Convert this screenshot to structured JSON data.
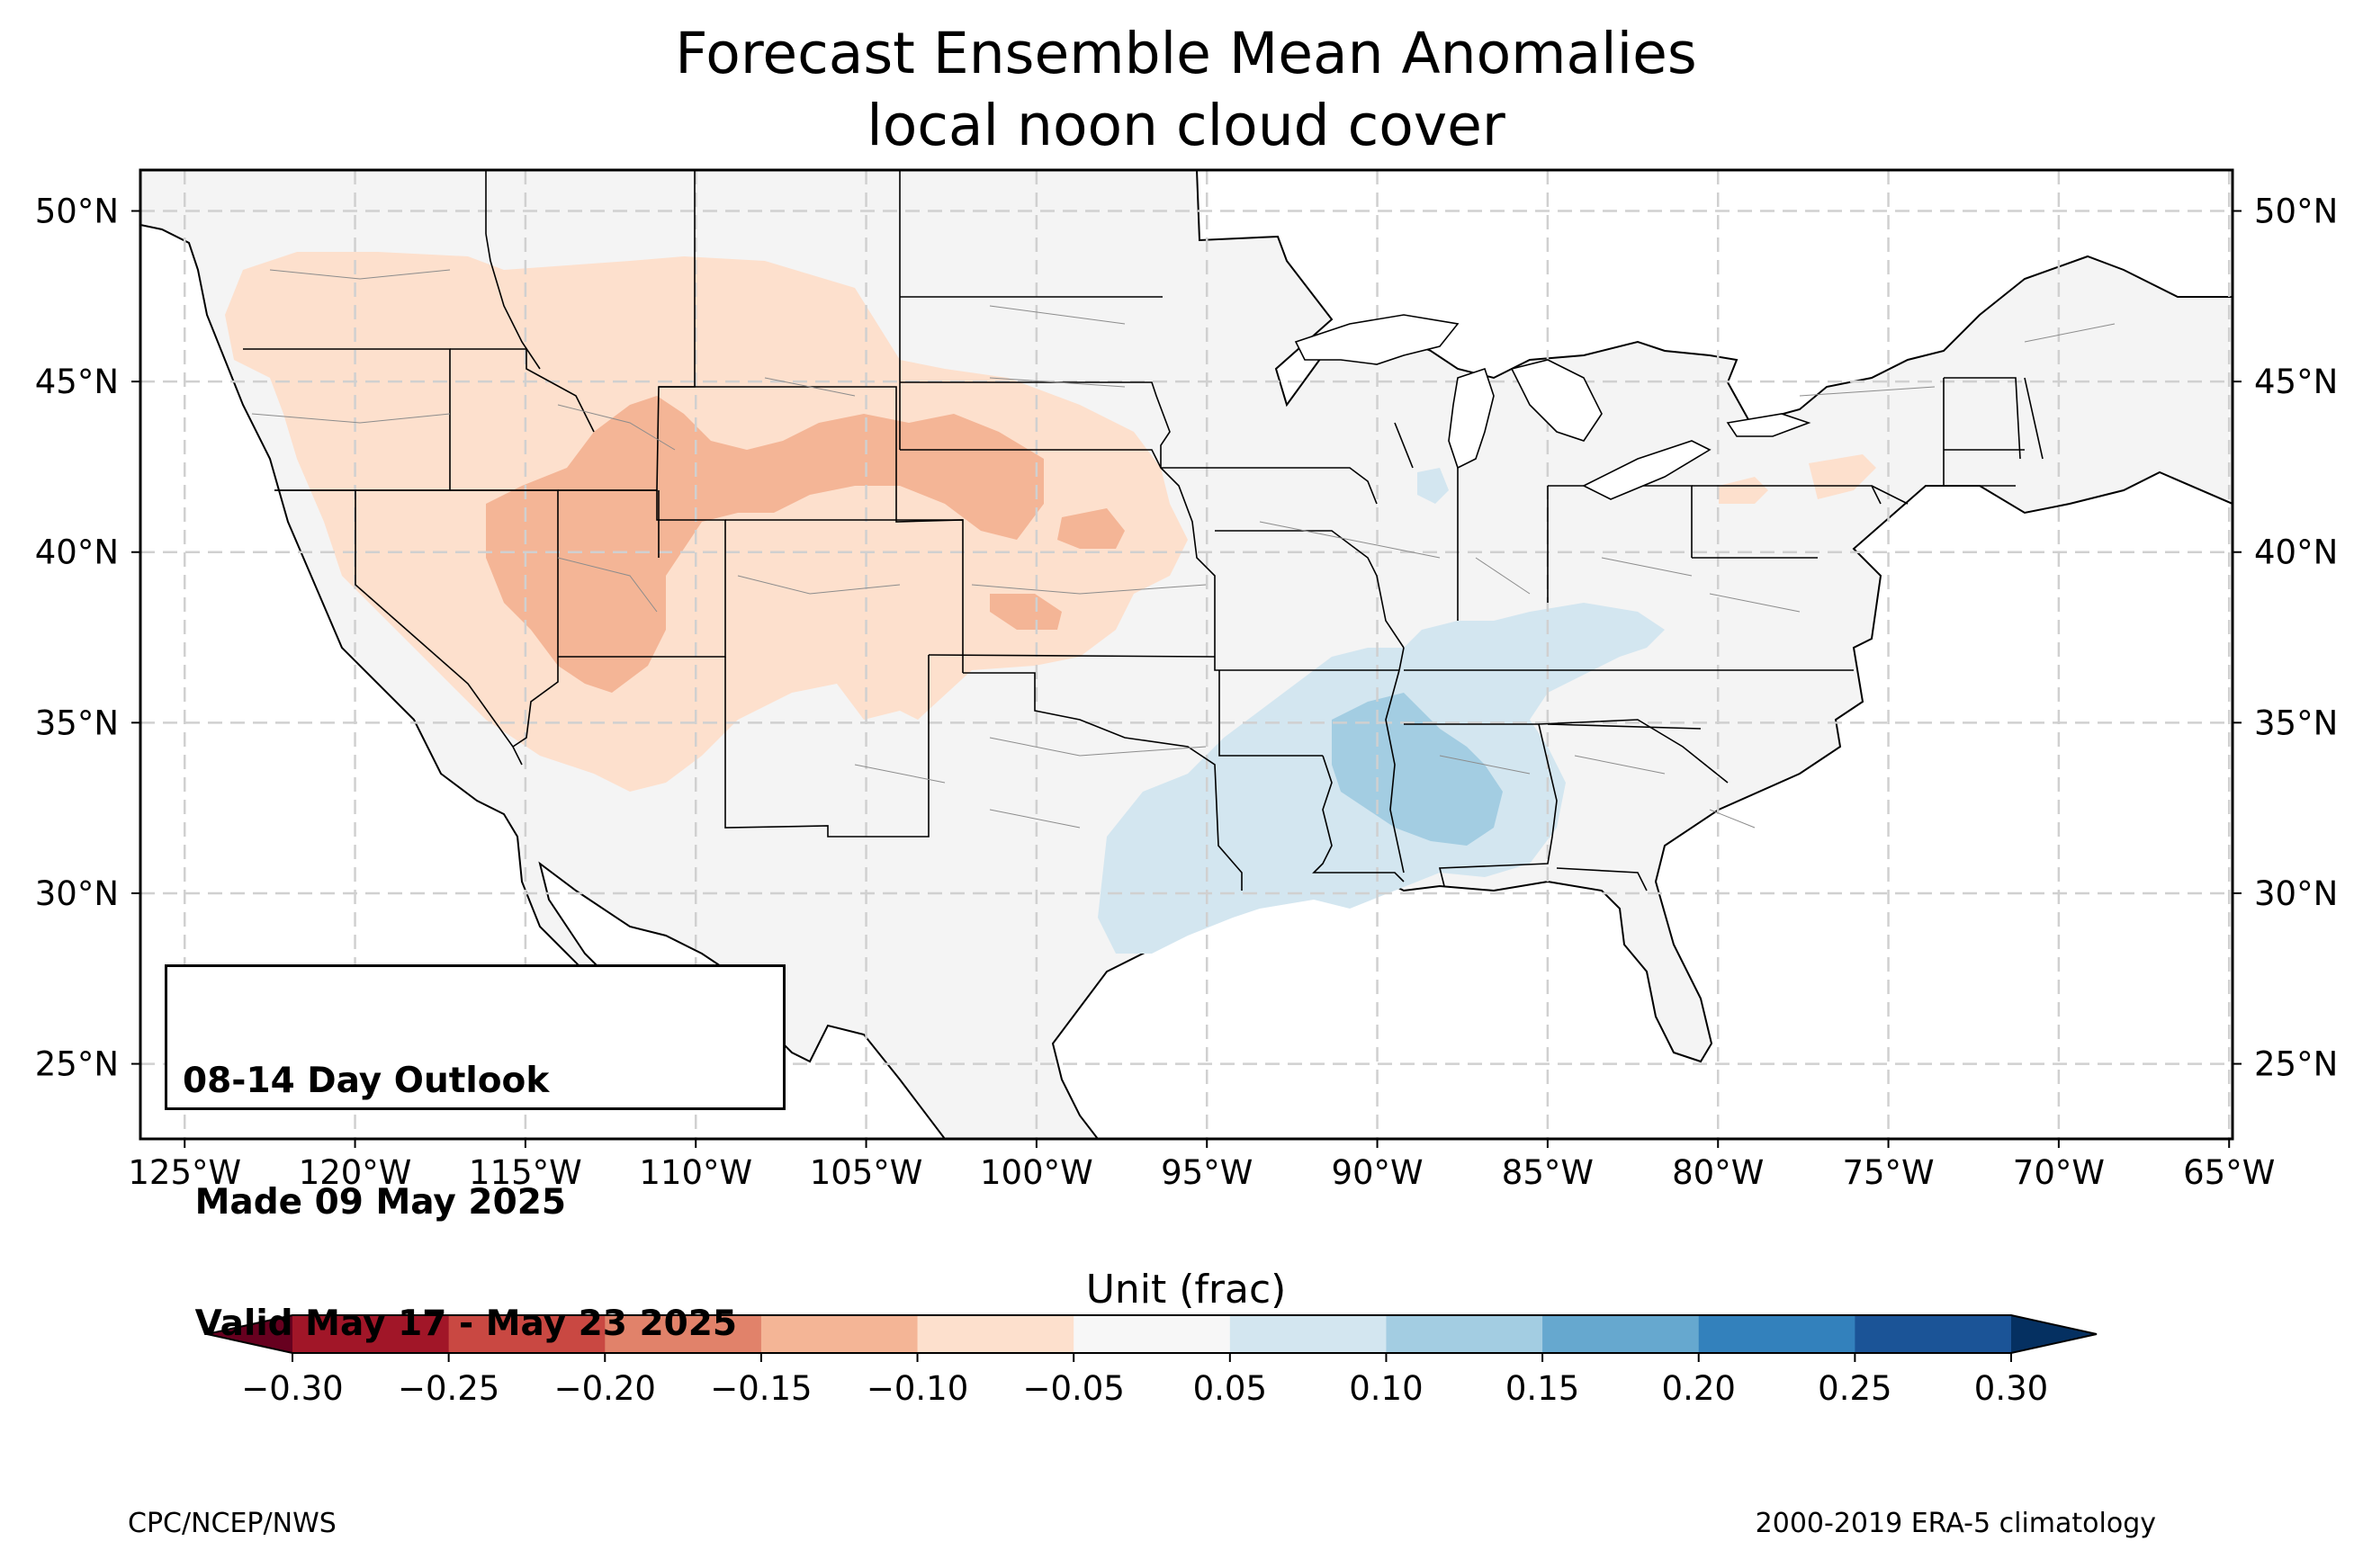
{
  "title": {
    "line1": "Forecast Ensemble Mean Anomalies",
    "line2": "local noon cloud cover"
  },
  "map": {
    "lon_range": [
      -126.3,
      -64.9
    ],
    "lat_range": [
      22.8,
      51.2
    ],
    "lon_ticks": [
      {
        "value": -125,
        "label": "125°W"
      },
      {
        "value": -120,
        "label": "120°W"
      },
      {
        "value": -115,
        "label": "115°W"
      },
      {
        "value": -110,
        "label": "110°W"
      },
      {
        "value": -105,
        "label": "105°W"
      },
      {
        "value": -100,
        "label": "100°W"
      },
      {
        "value": -95,
        "label": "95°W"
      },
      {
        "value": -90,
        "label": "90°W"
      },
      {
        "value": -85,
        "label": "85°W"
      },
      {
        "value": -80,
        "label": "80°W"
      },
      {
        "value": -75,
        "label": "75°W"
      },
      {
        "value": -70,
        "label": "70°W"
      },
      {
        "value": -65,
        "label": "65°W"
      }
    ],
    "lat_ticks": [
      {
        "value": 50,
        "label": "50°N"
      },
      {
        "value": 45,
        "label": "45°N"
      },
      {
        "value": 40,
        "label": "40°N"
      },
      {
        "value": 35,
        "label": "35°N"
      },
      {
        "value": 30,
        "label": "30°N"
      },
      {
        "value": 25,
        "label": "25°N"
      }
    ],
    "gridlines": true,
    "anomaly_regions": [
      {
        "value": -0.075,
        "level": "-0.10 to -0.05",
        "description": "Pacific Northwest, Great Basin, Rockies, central Plains"
      },
      {
        "value": -0.125,
        "level": "-0.15 to -0.10",
        "description": "Utah, Colorado, Wyoming, Nebraska"
      },
      {
        "value": 0.075,
        "level": "0.05 to 0.10",
        "description": "Texas, Lower Mississippi Valley, Tennessee Valley"
      },
      {
        "value": 0.125,
        "level": "0.10 to 0.15",
        "description": "Mississippi and Alabama"
      }
    ]
  },
  "outlook_box": {
    "line1": "08-14 Day Outlook",
    "line2": " Made 09 May 2025",
    "line3": " Valid May 17 - May 23 2025"
  },
  "colorbar": {
    "label": "Unit (frac)",
    "levels": [
      -0.3,
      -0.25,
      -0.2,
      -0.15,
      -0.1,
      -0.05,
      0.05,
      0.1,
      0.15,
      0.2,
      0.25,
      0.3
    ],
    "tick_labels": [
      "−0.30",
      "−0.25",
      "−0.20",
      "−0.15",
      "−0.10",
      "−0.05",
      "0.05",
      "0.10",
      "0.15",
      "0.20",
      "0.25",
      "0.30"
    ],
    "colors": [
      "#a11628",
      "#c94842",
      "#e1826a",
      "#f4b596",
      "#fde0cd",
      "#f7f7f7",
      "#d3e6f0",
      "#a3cde2",
      "#66a8cf",
      "#3381bc",
      "#1b5497"
    ],
    "under_color": "#67001f",
    "over_color": "#053061"
  },
  "footer": {
    "left": "CPC/NCEP/NWS",
    "right": "2000-2019 ERA-5 climatology"
  },
  "colors": {
    "land": "#f4f4f4",
    "border": "#000000",
    "county": "#8c8c8c",
    "grid": "#d0d0d0"
  }
}
